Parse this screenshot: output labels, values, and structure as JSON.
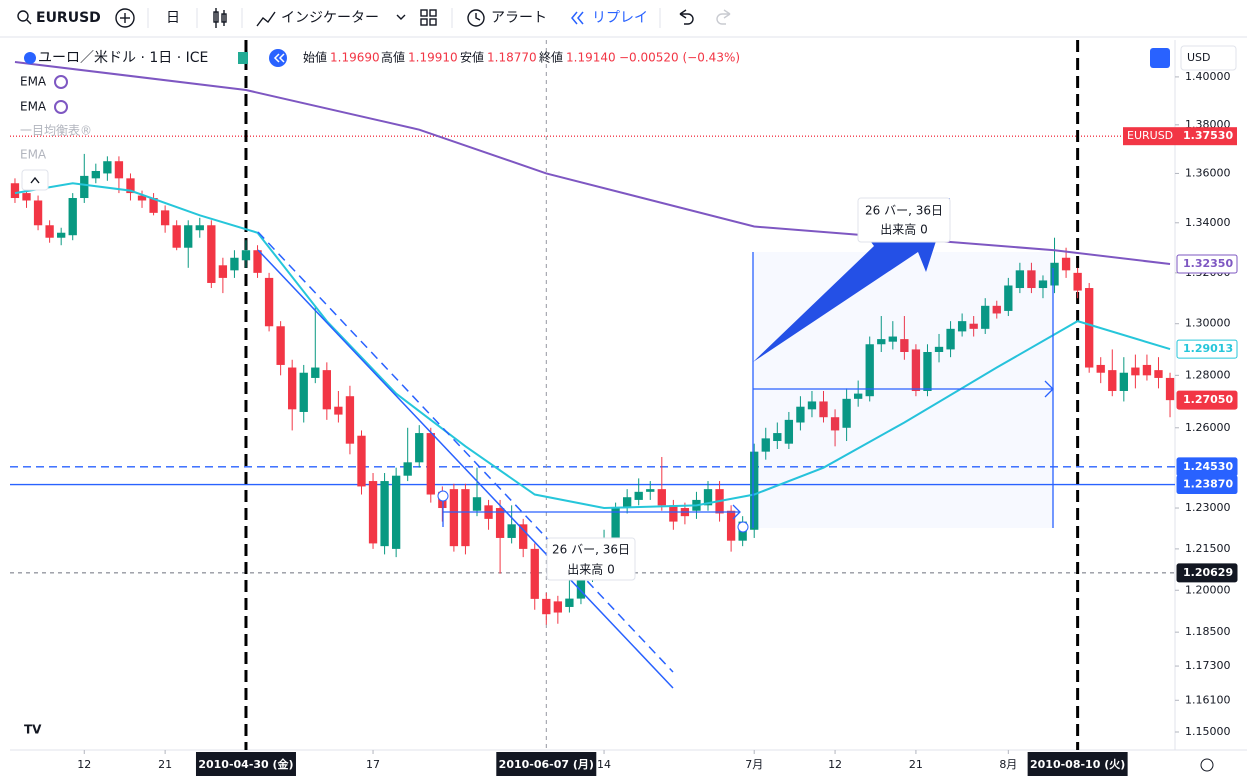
{
  "toolbar": {
    "symbol": "EURUSD",
    "interval": "日",
    "indicators": "インジケーター",
    "alert": "アラート",
    "replay": "リプレイ"
  },
  "legend": {
    "title": "ユーロ／米ドル · 1日 · ICE",
    "open_label": "始値",
    "open": "1.19690",
    "high_label": "高値",
    "high": "1.19910",
    "low_label": "安値",
    "low": "1.18770",
    "close_label": "終値",
    "close": "1.19140",
    "change": "−0.00520 (−0.43%)"
  },
  "studies": [
    "EMA",
    "EMA",
    "一目均衡表®",
    "EMA"
  ],
  "currency": "USD",
  "measures": [
    {
      "text": "26 バー, 36日",
      "sub": "出来高 0"
    },
    {
      "text": "26 バー, 36日",
      "sub": "出来高 0"
    }
  ],
  "chart_data": {
    "type": "candlestick",
    "log_scale": true,
    "up_color": "#089981",
    "down_color": "#f23645",
    "series": [
      {
        "name": "EURUSD",
        "open": [
          1.356,
          1.352,
          1.349,
          1.339,
          1.334,
          1.335,
          1.35,
          1.358,
          1.36,
          1.365,
          1.358,
          1.351,
          1.35,
          1.345,
          1.339,
          1.33,
          1.337,
          1.339,
          1.323,
          1.321,
          1.325,
          1.329,
          1.318,
          1.299,
          1.283,
          1.266,
          1.279,
          1.282,
          1.268,
          1.272,
          1.257,
          1.24,
          1.216,
          1.215,
          1.242,
          1.247,
          1.258,
          1.236,
          1.237,
          1.237,
          1.229,
          1.231,
          1.23,
          1.219,
          1.224,
          1.215,
          1.1969,
          1.196,
          1.194,
          1.197,
          1.205,
          1.214,
          1.219,
          1.23,
          1.233,
          1.236,
          1.237,
          1.231,
          1.23,
          1.229,
          1.231,
          1.237,
          1.229,
          1.218,
          1.222,
          1.251,
          1.255,
          1.254,
          1.262,
          1.267,
          1.27,
          1.264,
          1.26,
          1.271,
          1.272,
          1.292,
          1.293,
          1.294,
          1.29,
          1.274,
          1.289,
          1.29,
          1.297,
          1.3,
          1.298,
          1.307,
          1.305,
          1.314,
          1.321,
          1.314,
          1.315,
          1.326,
          1.32,
          1.314,
          1.284,
          1.282,
          1.274,
          1.283,
          1.284,
          1.282,
          1.279
        ],
        "high": [
          1.358,
          1.356,
          1.351,
          1.341,
          1.338,
          1.352,
          1.368,
          1.364,
          1.367,
          1.367,
          1.36,
          1.353,
          1.352,
          1.347,
          1.341,
          1.341,
          1.342,
          1.341,
          1.326,
          1.329,
          1.333,
          1.331,
          1.32,
          1.301,
          1.286,
          1.284,
          1.307,
          1.285,
          1.274,
          1.276,
          1.259,
          1.243,
          1.243,
          1.245,
          1.26,
          1.261,
          1.26,
          1.238,
          1.239,
          1.239,
          1.245,
          1.233,
          1.233,
          1.231,
          1.226,
          1.217,
          1.1991,
          1.198,
          1.204,
          1.213,
          1.217,
          1.222,
          1.232,
          1.237,
          1.241,
          1.24,
          1.249,
          1.233,
          1.232,
          1.236,
          1.24,
          1.24,
          1.231,
          1.227,
          1.254,
          1.26,
          1.262,
          1.266,
          1.272,
          1.274,
          1.274,
          1.267,
          1.275,
          1.278,
          1.295,
          1.303,
          1.301,
          1.303,
          1.292,
          1.292,
          1.296,
          1.301,
          1.304,
          1.303,
          1.31,
          1.309,
          1.318,
          1.324,
          1.324,
          1.319,
          1.334,
          1.33,
          1.322,
          1.316,
          1.287,
          1.29,
          1.287,
          1.288,
          1.288,
          1.287,
          1.281
        ],
        "low": [
          1.348,
          1.346,
          1.337,
          1.332,
          1.331,
          1.333,
          1.348,
          1.356,
          1.357,
          1.352,
          1.349,
          1.346,
          1.343,
          1.336,
          1.329,
          1.322,
          1.334,
          1.314,
          1.312,
          1.318,
          1.322,
          1.318,
          1.297,
          1.28,
          1.259,
          1.262,
          1.277,
          1.263,
          1.262,
          1.25,
          1.235,
          1.215,
          1.213,
          1.212,
          1.24,
          1.245,
          1.232,
          1.225,
          1.214,
          1.213,
          1.227,
          1.222,
          1.206,
          1.217,
          1.212,
          1.193,
          1.1877,
          1.188,
          1.192,
          1.195,
          1.203,
          1.212,
          1.217,
          1.228,
          1.231,
          1.233,
          1.229,
          1.222,
          1.224,
          1.226,
          1.229,
          1.225,
          1.214,
          1.216,
          1.219,
          1.248,
          1.252,
          1.252,
          1.259,
          1.264,
          1.262,
          1.253,
          1.255,
          1.268,
          1.27,
          1.289,
          1.29,
          1.286,
          1.272,
          1.272,
          1.285,
          1.287,
          1.295,
          1.295,
          1.296,
          1.302,
          1.303,
          1.312,
          1.312,
          1.31,
          1.312,
          1.318,
          1.31,
          1.281,
          1.277,
          1.272,
          1.27,
          1.275,
          1.278,
          1.275,
          1.264
        ],
        "close": [
          1.35,
          1.349,
          1.339,
          1.334,
          1.336,
          1.35,
          1.359,
          1.361,
          1.365,
          1.358,
          1.352,
          1.349,
          1.344,
          1.339,
          1.33,
          1.339,
          1.339,
          1.316,
          1.318,
          1.326,
          1.329,
          1.32,
          1.299,
          1.284,
          1.267,
          1.281,
          1.283,
          1.267,
          1.265,
          1.254,
          1.238,
          1.217,
          1.24,
          1.242,
          1.247,
          1.258,
          1.235,
          1.23,
          1.216,
          1.216,
          1.234,
          1.226,
          1.219,
          1.224,
          1.215,
          1.1969,
          1.1914,
          1.192,
          1.197,
          1.204,
          1.214,
          1.219,
          1.23,
          1.234,
          1.236,
          1.237,
          1.231,
          1.225,
          1.227,
          1.233,
          1.237,
          1.228,
          1.218,
          1.225,
          1.251,
          1.256,
          1.258,
          1.263,
          1.268,
          1.27,
          1.264,
          1.259,
          1.271,
          1.273,
          1.292,
          1.294,
          1.295,
          1.289,
          1.274,
          1.289,
          1.291,
          1.298,
          1.301,
          1.298,
          1.307,
          1.304,
          1.315,
          1.321,
          1.314,
          1.317,
          1.324,
          1.321,
          1.313,
          1.283,
          1.281,
          1.274,
          1.281,
          1.28,
          1.28,
          1.279,
          1.2705
        ]
      }
    ],
    "lines": [
      {
        "name": "EMA",
        "color": "#7e57c2",
        "x": [
          0,
          20,
          35,
          46,
          64,
          90,
          100
        ],
        "values": [
          1.4063,
          1.3945,
          1.378,
          1.36,
          1.3385,
          1.329,
          1.3235
        ]
      },
      {
        "name": "EMA",
        "color": "#26c6da",
        "x": [
          0,
          5,
          10,
          16,
          21,
          27,
          33,
          39,
          45,
          51,
          59,
          64,
          70,
          77,
          85,
          92,
          100
        ],
        "values": [
          1.352,
          1.356,
          1.353,
          1.343,
          1.336,
          1.301,
          1.273,
          1.253,
          1.235,
          1.23,
          1.231,
          1.235,
          1.245,
          1.262,
          1.283,
          1.301,
          1.29013
        ]
      }
    ],
    "price_tags": [
      {
        "name": "EURUSD",
        "value": 1.3753,
        "label": "1.37530",
        "color": "#f23645"
      },
      {
        "value": 1.3235,
        "label": "1.32350",
        "color": "#7e57c2"
      },
      {
        "value": 1.29013,
        "label": "1.29013",
        "color": "#26c6da"
      },
      {
        "value": 1.2705,
        "label": "1.27050",
        "color": "#f23645"
      },
      {
        "value": 1.2453,
        "label": "1.24530",
        "color": "#2962ff"
      },
      {
        "value": 1.2387,
        "label": "1.23870",
        "color": "#2962ff"
      },
      {
        "value": 1.20629,
        "label": "1.20629",
        "color": "#131722"
      }
    ],
    "hlines": [
      {
        "value": 1.3753,
        "color": "#f23645",
        "dash": "1 2"
      },
      {
        "value": 1.2453,
        "color": "#2962ff",
        "dash": "8 5"
      },
      {
        "value": 1.2387,
        "color": "#2962ff",
        "dash": "none"
      },
      {
        "value": 1.20629,
        "color": "#9598a1",
        "dash": "4 4"
      }
    ],
    "ylim": [
      1.1438,
      1.4156
    ],
    "yticks": [
      {
        "value": 1.4,
        "label": "1.40000"
      },
      {
        "value": 1.38,
        "label": "1.38000"
      },
      {
        "value": 1.36,
        "label": "1.36000"
      },
      {
        "value": 1.34,
        "label": "1.34000"
      },
      {
        "value": 1.32,
        "label": "1.32000"
      },
      {
        "value": 1.3,
        "label": "1.30000"
      },
      {
        "value": 1.28,
        "label": "1.28000"
      },
      {
        "value": 1.26,
        "label": "1.26000"
      },
      {
        "value": 1.23,
        "label": "1.23000"
      },
      {
        "value": 1.215,
        "label": "1.21500"
      },
      {
        "value": 1.2,
        "label": "1.20000"
      },
      {
        "value": 1.185,
        "label": "1.18500"
      },
      {
        "value": 1.173,
        "label": "1.17300"
      },
      {
        "value": 1.161,
        "label": "1.16100"
      },
      {
        "value": 1.15,
        "label": "1.15000"
      }
    ],
    "xlim": [
      -0.43,
      100.43
    ],
    "xticks": [
      {
        "value": 6,
        "label": "12"
      },
      {
        "value": 13,
        "label": "21"
      },
      {
        "value": 31,
        "label": "17"
      },
      {
        "value": 51,
        "label": "14"
      },
      {
        "value": 64,
        "label": "7月"
      },
      {
        "value": 71,
        "label": "12"
      },
      {
        "value": 78,
        "label": "21"
      },
      {
        "value": 86,
        "label": "8月"
      }
    ],
    "date_markers": [
      {
        "value": 20,
        "label": "2010-04-30 (金)",
        "style": "black-dashed"
      },
      {
        "value": 46,
        "label": "2010-06-07 (月)",
        "style": "crosshair"
      },
      {
        "value": 92,
        "label": "2010-08-10 (火)",
        "style": "black-dashed"
      }
    ]
  }
}
